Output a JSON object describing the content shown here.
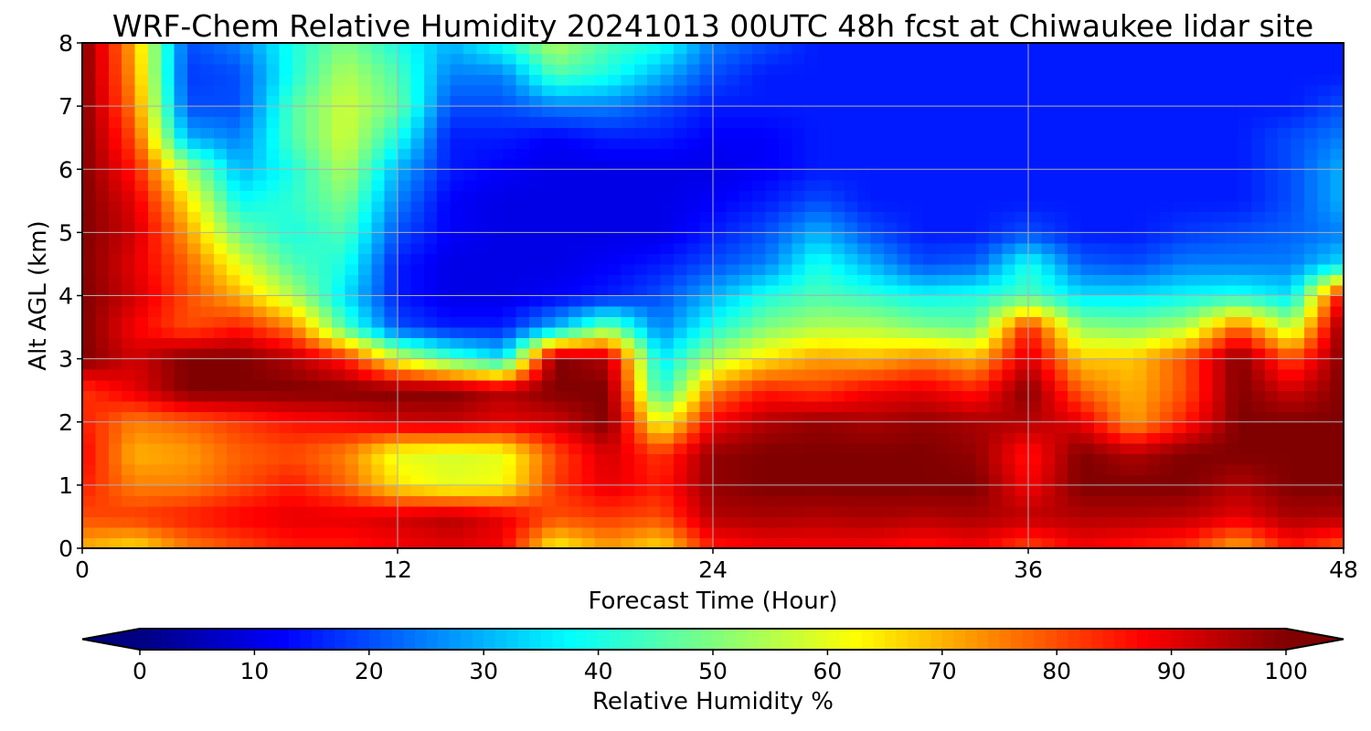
{
  "chart_data": {
    "type": "heatmap",
    "title": "WRF-Chem Relative Humidity 20241013 00UTC 48h fcst at Chiwaukee lidar site",
    "xlabel": "Forecast Time (Hour)",
    "ylabel": "Alt AGL (km)",
    "xlim": [
      0,
      48
    ],
    "ylim": [
      0,
      8
    ],
    "xticks": [
      0,
      12,
      24,
      36,
      48
    ],
    "yticks": [
      0,
      1,
      2,
      3,
      4,
      5,
      6,
      7,
      8
    ],
    "grid": true,
    "colormap": "jet",
    "colorbar": {
      "label": "Relative Humidity %",
      "min": 0,
      "max": 100,
      "ticks": [
        0,
        10,
        20,
        30,
        40,
        50,
        60,
        70,
        80,
        90,
        100
      ],
      "extend": "both",
      "orientation": "horizontal"
    },
    "x": [
      0,
      2,
      4,
      6,
      8,
      10,
      12,
      14,
      16,
      18,
      20,
      22,
      24,
      26,
      28,
      30,
      32,
      34,
      36,
      38,
      40,
      42,
      44,
      46,
      48
    ],
    "y": [
      0,
      0.5,
      1,
      1.5,
      2,
      2.5,
      3,
      3.5,
      4,
      4.5,
      5,
      5.5,
      6,
      6.5,
      7,
      7.5,
      8
    ],
    "z": [
      [
        70,
        65,
        75,
        80,
        85,
        85,
        88,
        90,
        88,
        62,
        72,
        65,
        85,
        88,
        88,
        88,
        85,
        88,
        80,
        88,
        85,
        82,
        70,
        85,
        78
      ],
      [
        80,
        82,
        85,
        88,
        90,
        90,
        92,
        95,
        90,
        80,
        82,
        80,
        95,
        96,
        95,
        96,
        95,
        96,
        94,
        95,
        95,
        94,
        90,
        96,
        95
      ],
      [
        85,
        75,
        75,
        80,
        85,
        78,
        65,
        60,
        62,
        82,
        90,
        85,
        98,
        100,
        100,
        100,
        100,
        100,
        88,
        100,
        100,
        100,
        95,
        100,
        100
      ],
      [
        88,
        70,
        72,
        78,
        80,
        75,
        60,
        58,
        60,
        80,
        92,
        82,
        98,
        100,
        100,
        100,
        100,
        98,
        85,
        100,
        95,
        100,
        100,
        100,
        100
      ],
      [
        85,
        75,
        78,
        82,
        86,
        88,
        92,
        93,
        90,
        92,
        100,
        60,
        88,
        95,
        98,
        96,
        98,
        96,
        95,
        90,
        72,
        85,
        100,
        100,
        100
      ],
      [
        82,
        90,
        100,
        100,
        100,
        100,
        100,
        100,
        95,
        100,
        100,
        40,
        75,
        85,
        82,
        88,
        90,
        85,
        100,
        78,
        70,
        80,
        100,
        92,
        100
      ],
      [
        100,
        92,
        100,
        100,
        95,
        85,
        60,
        45,
        35,
        100,
        95,
        35,
        55,
        65,
        72,
        70,
        75,
        70,
        92,
        68,
        68,
        80,
        100,
        80,
        100
      ],
      [
        100,
        88,
        80,
        85,
        75,
        45,
        20,
        15,
        15,
        30,
        50,
        25,
        40,
        50,
        55,
        55,
        50,
        48,
        85,
        52,
        50,
        55,
        78,
        55,
        100
      ],
      [
        100,
        92,
        80,
        70,
        55,
        35,
        15,
        10,
        10,
        12,
        15,
        20,
        30,
        40,
        45,
        42,
        38,
        40,
        45,
        35,
        35,
        38,
        40,
        35,
        90
      ],
      [
        100,
        90,
        78,
        60,
        45,
        40,
        15,
        10,
        10,
        10,
        12,
        15,
        20,
        25,
        40,
        30,
        20,
        22,
        40,
        22,
        20,
        25,
        25,
        25,
        35
      ],
      [
        100,
        92,
        72,
        48,
        40,
        45,
        20,
        12,
        10,
        10,
        10,
        10,
        15,
        20,
        30,
        20,
        15,
        15,
        20,
        15,
        15,
        18,
        20,
        22,
        25
      ],
      [
        100,
        90,
        65,
        38,
        42,
        50,
        25,
        12,
        10,
        10,
        10,
        10,
        12,
        15,
        20,
        15,
        15,
        15,
        15,
        15,
        15,
        15,
        15,
        20,
        30
      ],
      [
        100,
        85,
        55,
        30,
        40,
        55,
        30,
        15,
        12,
        10,
        10,
        10,
        10,
        12,
        15,
        15,
        15,
        15,
        15,
        15,
        15,
        15,
        15,
        20,
        30
      ],
      [
        100,
        80,
        30,
        25,
        45,
        58,
        40,
        15,
        15,
        12,
        15,
        15,
        12,
        12,
        15,
        15,
        15,
        15,
        15,
        15,
        15,
        15,
        15,
        20,
        25
      ],
      [
        100,
        75,
        20,
        20,
        45,
        58,
        48,
        20,
        20,
        25,
        25,
        20,
        15,
        15,
        15,
        15,
        15,
        15,
        15,
        15,
        15,
        15,
        15,
        15,
        20
      ],
      [
        100,
        72,
        18,
        20,
        40,
        55,
        45,
        25,
        25,
        45,
        40,
        30,
        20,
        15,
        15,
        15,
        15,
        15,
        15,
        15,
        15,
        15,
        15,
        15,
        15
      ],
      [
        100,
        70,
        20,
        25,
        40,
        50,
        40,
        30,
        40,
        55,
        45,
        40,
        25,
        20,
        15,
        15,
        15,
        15,
        15,
        15,
        15,
        15,
        15,
        15,
        15
      ]
    ]
  }
}
